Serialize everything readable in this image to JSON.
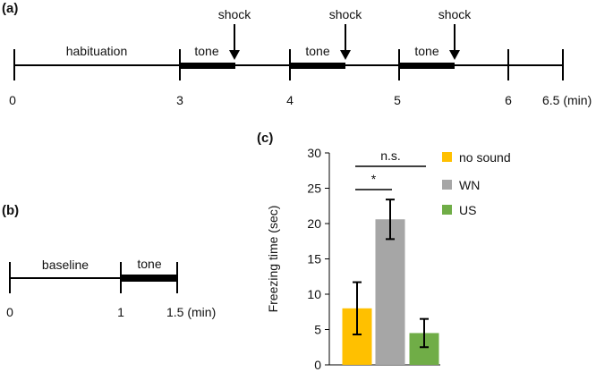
{
  "panel_a": {
    "label": "(a)",
    "habituation_label": "habituation",
    "tone_labels": [
      "tone",
      "tone",
      "tone"
    ],
    "shock_labels": [
      "shock",
      "shock",
      "shock"
    ],
    "ticks": [
      "0",
      "3",
      "4",
      "5",
      "6",
      "6.5 (min)"
    ]
  },
  "panel_b": {
    "label": "(b)",
    "baseline_label": "baseline",
    "tone_label": "tone",
    "ticks": [
      "0",
      "1",
      "1.5 (min)"
    ]
  },
  "panel_c": {
    "label": "(c)",
    "chart_data": {
      "type": "bar",
      "title": "",
      "xlabel": "",
      "ylabel": "Freezing time (sec)",
      "ylim": [
        0,
        30
      ],
      "yticks": [
        "0",
        "5",
        "10",
        "15",
        "20",
        "25",
        "30"
      ],
      "categories": [
        "no sound",
        "WN",
        "US"
      ],
      "values": [
        8.0,
        20.6,
        4.5
      ],
      "errors": [
        3.7,
        2.8,
        2.0
      ],
      "colors": [
        "#FFC000",
        "#A6A6A6",
        "#70AD47"
      ],
      "legend": [
        "no sound",
        "WN",
        "US"
      ],
      "legend_position": "right",
      "annotations": [
        {
          "text": "n.s.",
          "between": [
            "no sound",
            "US"
          ]
        },
        {
          "text": "*",
          "between": [
            "no sound",
            "WN"
          ]
        }
      ]
    }
  }
}
